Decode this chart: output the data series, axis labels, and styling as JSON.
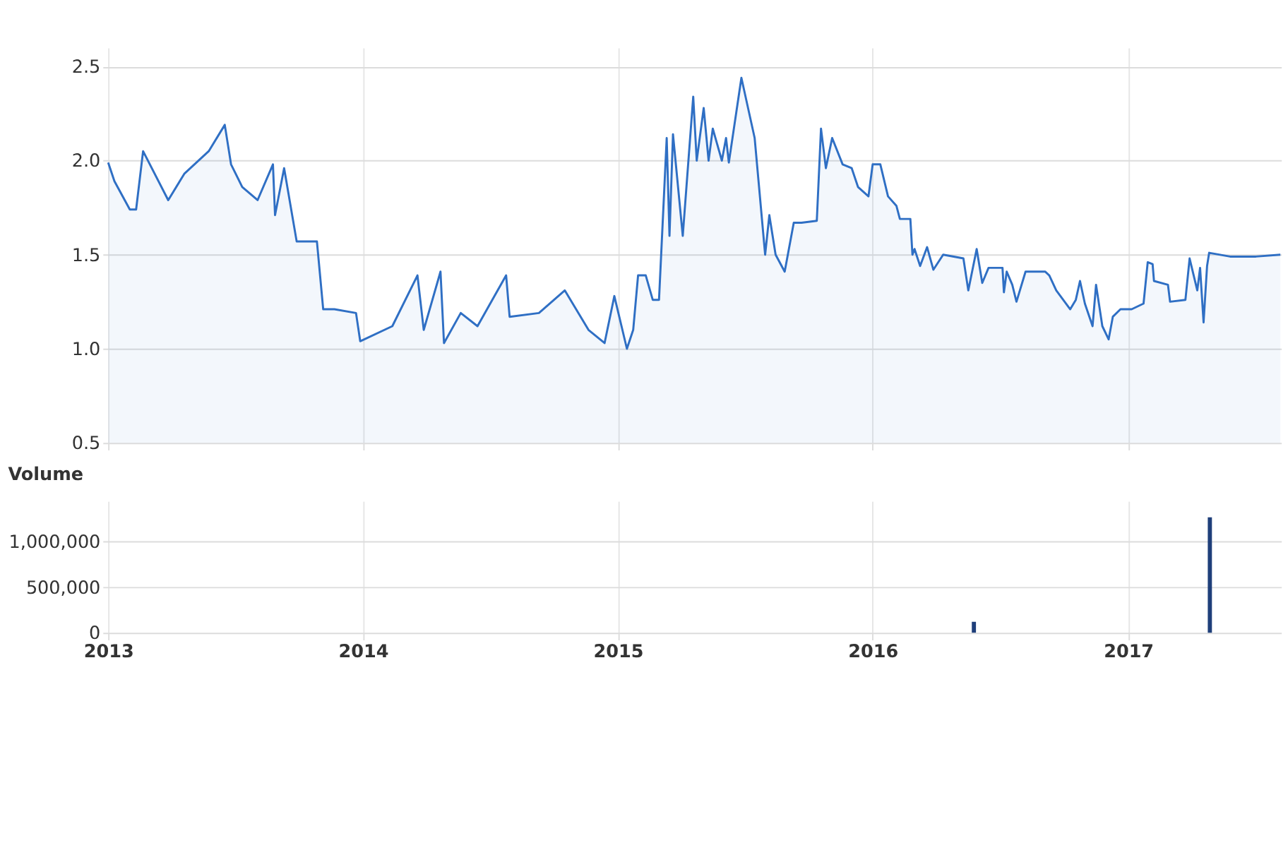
{
  "chart_data": [
    {
      "type": "area",
      "xlim": [
        "2012-12-24",
        "2017-08-08"
      ],
      "xticks": [
        {
          "value": "2013",
          "label": null
        },
        {
          "value": "2014",
          "label": null
        },
        {
          "value": "2015",
          "label": null
        },
        {
          "value": "2016",
          "label": null
        },
        {
          "value": "2017",
          "label": null
        }
      ],
      "ylim": [
        0.5,
        2.6
      ],
      "yticks": [
        0.5,
        {
          "value": 1,
          "label": "1.0"
        },
        1.5,
        {
          "value": 2,
          "label": "2.0"
        },
        2.5
      ],
      "grid": true,
      "tick_labels": "y",
      "series": [
        {
          "color": "#2f6fc4",
          "x": [
            "2013-01-01",
            "2013-01-10",
            "2013-02-01",
            "2013-02-10",
            "2013-02-20",
            "2013-03-28",
            "2013-04-20",
            "2013-05-25",
            "2013-06-17",
            "2013-06-26",
            "2013-07-12",
            "2013-08-03",
            "2013-08-25",
            "2013-08-28",
            "2013-09-10",
            "2013-09-28",
            "2013-10-27",
            "2013-11-05",
            "2013-11-21",
            "2013-12-22",
            "2013-12-28",
            "2014-02-12",
            "2014-03-20",
            "2014-03-29",
            "2014-04-22",
            "2014-04-27",
            "2014-05-21",
            "2014-06-14",
            "2014-07-25",
            "2014-07-30",
            "2014-09-10",
            "2014-10-17",
            "2014-11-20",
            "2014-12-13",
            "2014-12-27",
            "2015-01-14",
            "2015-01-23",
            "2015-01-30",
            "2015-02-10",
            "2015-02-20",
            "2015-03-01",
            "2015-03-12",
            "2015-03-16",
            "2015-03-21",
            "2015-04-04",
            "2015-04-19",
            "2015-04-24",
            "2015-05-04",
            "2015-05-11",
            "2015-05-17",
            "2015-05-30",
            "2015-06-05",
            "2015-06-09",
            "2015-06-27",
            "2015-07-16",
            "2015-07-31",
            "2015-08-06",
            "2015-08-15",
            "2015-08-28",
            "2015-09-10",
            "2015-09-21",
            "2015-10-13",
            "2015-10-19",
            "2015-10-26",
            "2015-11-04",
            "2015-11-19",
            "2015-12-02",
            "2015-12-11",
            "2015-12-26",
            "2016-01-01",
            "2016-01-12",
            "2016-01-23",
            "2016-02-04",
            "2016-02-09",
            "2016-02-24",
            "2016-02-27",
            "2016-03-01",
            "2016-03-09",
            "2016-03-19",
            "2016-03-28",
            "2016-04-11",
            "2016-05-10",
            "2016-05-17",
            "2016-05-29",
            "2016-06-06",
            "2016-06-15",
            "2016-07-05",
            "2016-07-07",
            "2016-07-11",
            "2016-07-19",
            "2016-07-25",
            "2016-08-07",
            "2016-09-04",
            "2016-09-10",
            "2016-09-20",
            "2016-10-10",
            "2016-10-18",
            "2016-10-24",
            "2016-10-31",
            "2016-11-11",
            "2016-11-16",
            "2016-11-25",
            "2016-12-04",
            "2016-12-10",
            "2016-12-21",
            "2017-01-06",
            "2017-01-23",
            "2017-01-29",
            "2017-02-05",
            "2017-02-07",
            "2017-02-27",
            "2017-03-02",
            "2017-03-24",
            "2017-03-30",
            "2017-04-10",
            "2017-04-14",
            "2017-04-19",
            "2017-04-24",
            "2017-04-27",
            "2017-05-27",
            "2017-07-03",
            "2017-08-07"
          ],
          "values": [
            1.99,
            1.89,
            1.74,
            1.74,
            2.05,
            1.79,
            1.93,
            2.05,
            2.19,
            1.98,
            1.86,
            1.79,
            1.98,
            1.71,
            1.96,
            1.57,
            1.57,
            1.21,
            1.21,
            1.19,
            1.04,
            1.12,
            1.39,
            1.1,
            1.41,
            1.03,
            1.19,
            1.12,
            1.39,
            1.17,
            1.19,
            1.31,
            1.1,
            1.03,
            1.28,
            1.0,
            1.1,
            1.39,
            1.39,
            1.26,
            1.26,
            2.12,
            1.6,
            2.14,
            1.6,
            2.34,
            2.0,
            2.28,
            2.0,
            2.17,
            2.0,
            2.12,
            1.99,
            2.44,
            2.12,
            1.5,
            1.71,
            1.5,
            1.41,
            1.67,
            1.67,
            1.68,
            2.17,
            1.96,
            2.12,
            1.98,
            1.96,
            1.86,
            1.81,
            1.98,
            1.98,
            1.81,
            1.76,
            1.69,
            1.69,
            1.5,
            1.53,
            1.44,
            1.54,
            1.42,
            1.5,
            1.48,
            1.31,
            1.53,
            1.35,
            1.43,
            1.43,
            1.3,
            1.41,
            1.34,
            1.25,
            1.41,
            1.41,
            1.39,
            1.31,
            1.21,
            1.26,
            1.36,
            1.24,
            1.12,
            1.34,
            1.12,
            1.05,
            1.17,
            1.21,
            1.21,
            1.24,
            1.46,
            1.45,
            1.36,
            1.34,
            1.25,
            1.26,
            1.48,
            1.31,
            1.43,
            1.14,
            1.44,
            1.51,
            1.49,
            1.49,
            1.5
          ]
        }
      ]
    },
    {
      "type": "bar",
      "title": "Volume",
      "xlim": [
        "2012-12-24",
        "2017-08-08"
      ],
      "xticks": [
        "2013",
        "2014",
        "2015",
        "2016",
        "2017"
      ],
      "ylim": [
        0,
        1450000
      ],
      "yticks": [
        {
          "value": 0,
          "label": "0"
        },
        {
          "value": 500000,
          "label": "500,000"
        },
        {
          "value": 1000000,
          "label": "1,000,000"
        }
      ],
      "grid": true,
      "series": [
        {
          "color": "#1f3f7a",
          "x": [
            "2016-05-25",
            "2017-04-28"
          ],
          "values": [
            120000,
            1270000
          ]
        }
      ]
    }
  ]
}
